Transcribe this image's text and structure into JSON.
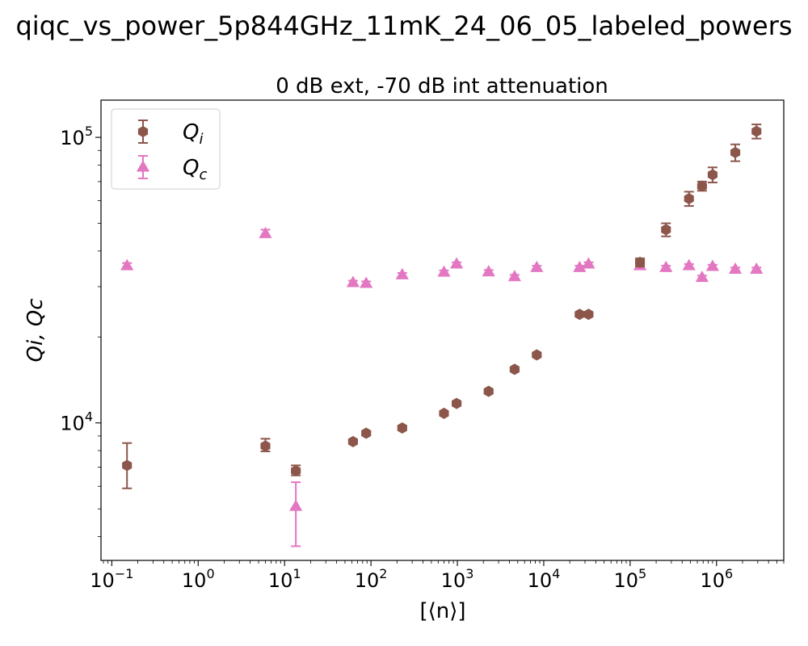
{
  "figure": {
    "suptitle": "qiqc_vs_power_5p844GHz_11mK_24_06_05_labeled_powers"
  },
  "chart_data": {
    "type": "scatter",
    "title": "0 dB ext, -70 dB int attenuation",
    "xlabel": "[⟨n⟩]",
    "ylabel": "Qi, Qc",
    "xscale": "log",
    "yscale": "log",
    "xlim": [
      0.075,
      6000000
    ],
    "ylim": [
      3300,
      135000
    ],
    "grid": false,
    "legend_position": "top-left",
    "x_ticks": [
      {
        "value": 0.1,
        "base": "10",
        "exp": "−1"
      },
      {
        "value": 1,
        "base": "10",
        "exp": "0"
      },
      {
        "value": 10,
        "base": "10",
        "exp": "1"
      },
      {
        "value": 100,
        "base": "10",
        "exp": "2"
      },
      {
        "value": 1000,
        "base": "10",
        "exp": "3"
      },
      {
        "value": 10000,
        "base": "10",
        "exp": "4"
      },
      {
        "value": 100000,
        "base": "10",
        "exp": "5"
      },
      {
        "value": 1000000,
        "base": "10",
        "exp": "6"
      }
    ],
    "y_ticks": [
      {
        "value": 10000,
        "base": "10",
        "exp": "4"
      },
      {
        "value": 100000,
        "base": "10",
        "exp": "5"
      }
    ],
    "series": [
      {
        "name": "Qi",
        "legend_main": "Q",
        "legend_sub": "i",
        "marker": "hexagon",
        "color": "#8c564b",
        "points": [
          {
            "x": 0.15,
            "y": 7100,
            "err_lo": 1200,
            "err_hi": 1400
          },
          {
            "x": 6,
            "y": 8300,
            "err_lo": 350,
            "err_hi": 500
          },
          {
            "x": 13.5,
            "y": 6800,
            "err_lo": 250,
            "err_hi": 300
          },
          {
            "x": 62,
            "y": 8600,
            "err_lo": 100,
            "err_hi": 100
          },
          {
            "x": 88,
            "y": 9200,
            "err_lo": 100,
            "err_hi": 100
          },
          {
            "x": 230,
            "y": 9600,
            "err_lo": 100,
            "err_hi": 100
          },
          {
            "x": 700,
            "y": 10800,
            "err_lo": 100,
            "err_hi": 100
          },
          {
            "x": 980,
            "y": 11700,
            "err_lo": 150,
            "err_hi": 150
          },
          {
            "x": 2300,
            "y": 12900,
            "err_lo": 150,
            "err_hi": 150
          },
          {
            "x": 4600,
            "y": 15400,
            "err_lo": 150,
            "err_hi": 150
          },
          {
            "x": 8300,
            "y": 17300,
            "err_lo": 200,
            "err_hi": 200
          },
          {
            "x": 26000,
            "y": 24000,
            "err_lo": 250,
            "err_hi": 250
          },
          {
            "x": 33000,
            "y": 24000,
            "err_lo": 250,
            "err_hi": 250
          },
          {
            "x": 130000,
            "y": 36500,
            "err_lo": 1200,
            "err_hi": 1200
          },
          {
            "x": 260000,
            "y": 47500,
            "err_lo": 2500,
            "err_hi": 2500
          },
          {
            "x": 480000,
            "y": 61000,
            "err_lo": 3500,
            "err_hi": 3500
          },
          {
            "x": 680000,
            "y": 67500,
            "err_lo": 2500,
            "err_hi": 2500
          },
          {
            "x": 900000,
            "y": 74000,
            "err_lo": 4500,
            "err_hi": 4500
          },
          {
            "x": 1650000,
            "y": 88500,
            "err_lo": 6000,
            "err_hi": 6000
          },
          {
            "x": 2900000,
            "y": 105000,
            "err_lo": 6000,
            "err_hi": 6000
          }
        ]
      },
      {
        "name": "Qc",
        "legend_main": "Q",
        "legend_sub": "c",
        "marker": "triangle",
        "color": "#e377c2",
        "points": [
          {
            "x": 0.15,
            "y": 35500,
            "err_lo": 500,
            "err_hi": 800
          },
          {
            "x": 6,
            "y": 46000,
            "err_lo": 1000,
            "err_hi": 1500
          },
          {
            "x": 13.5,
            "y": 5100,
            "err_lo": 1400,
            "err_hi": 1100
          },
          {
            "x": 62,
            "y": 31000,
            "err_lo": 500,
            "err_hi": 500
          },
          {
            "x": 88,
            "y": 30800,
            "err_lo": 500,
            "err_hi": 500
          },
          {
            "x": 230,
            "y": 33000,
            "err_lo": 500,
            "err_hi": 500
          },
          {
            "x": 700,
            "y": 33700,
            "err_lo": 500,
            "err_hi": 500
          },
          {
            "x": 980,
            "y": 36000,
            "err_lo": 500,
            "err_hi": 500
          },
          {
            "x": 2300,
            "y": 33800,
            "err_lo": 500,
            "err_hi": 500
          },
          {
            "x": 4600,
            "y": 32500,
            "err_lo": 500,
            "err_hi": 500
          },
          {
            "x": 8300,
            "y": 35000,
            "err_lo": 500,
            "err_hi": 500
          },
          {
            "x": 26000,
            "y": 35000,
            "err_lo": 500,
            "err_hi": 500
          },
          {
            "x": 33000,
            "y": 36000,
            "err_lo": 500,
            "err_hi": 500
          },
          {
            "x": 130000,
            "y": 35500,
            "err_lo": 500,
            "err_hi": 500
          },
          {
            "x": 260000,
            "y": 35000,
            "err_lo": 500,
            "err_hi": 500
          },
          {
            "x": 480000,
            "y": 35500,
            "err_lo": 500,
            "err_hi": 500
          },
          {
            "x": 680000,
            "y": 32300,
            "err_lo": 500,
            "err_hi": 500
          },
          {
            "x": 900000,
            "y": 35300,
            "err_lo": 500,
            "err_hi": 500
          },
          {
            "x": 1650000,
            "y": 34500,
            "err_lo": 500,
            "err_hi": 500
          },
          {
            "x": 2900000,
            "y": 34500,
            "err_lo": 500,
            "err_hi": 500
          }
        ]
      }
    ]
  }
}
